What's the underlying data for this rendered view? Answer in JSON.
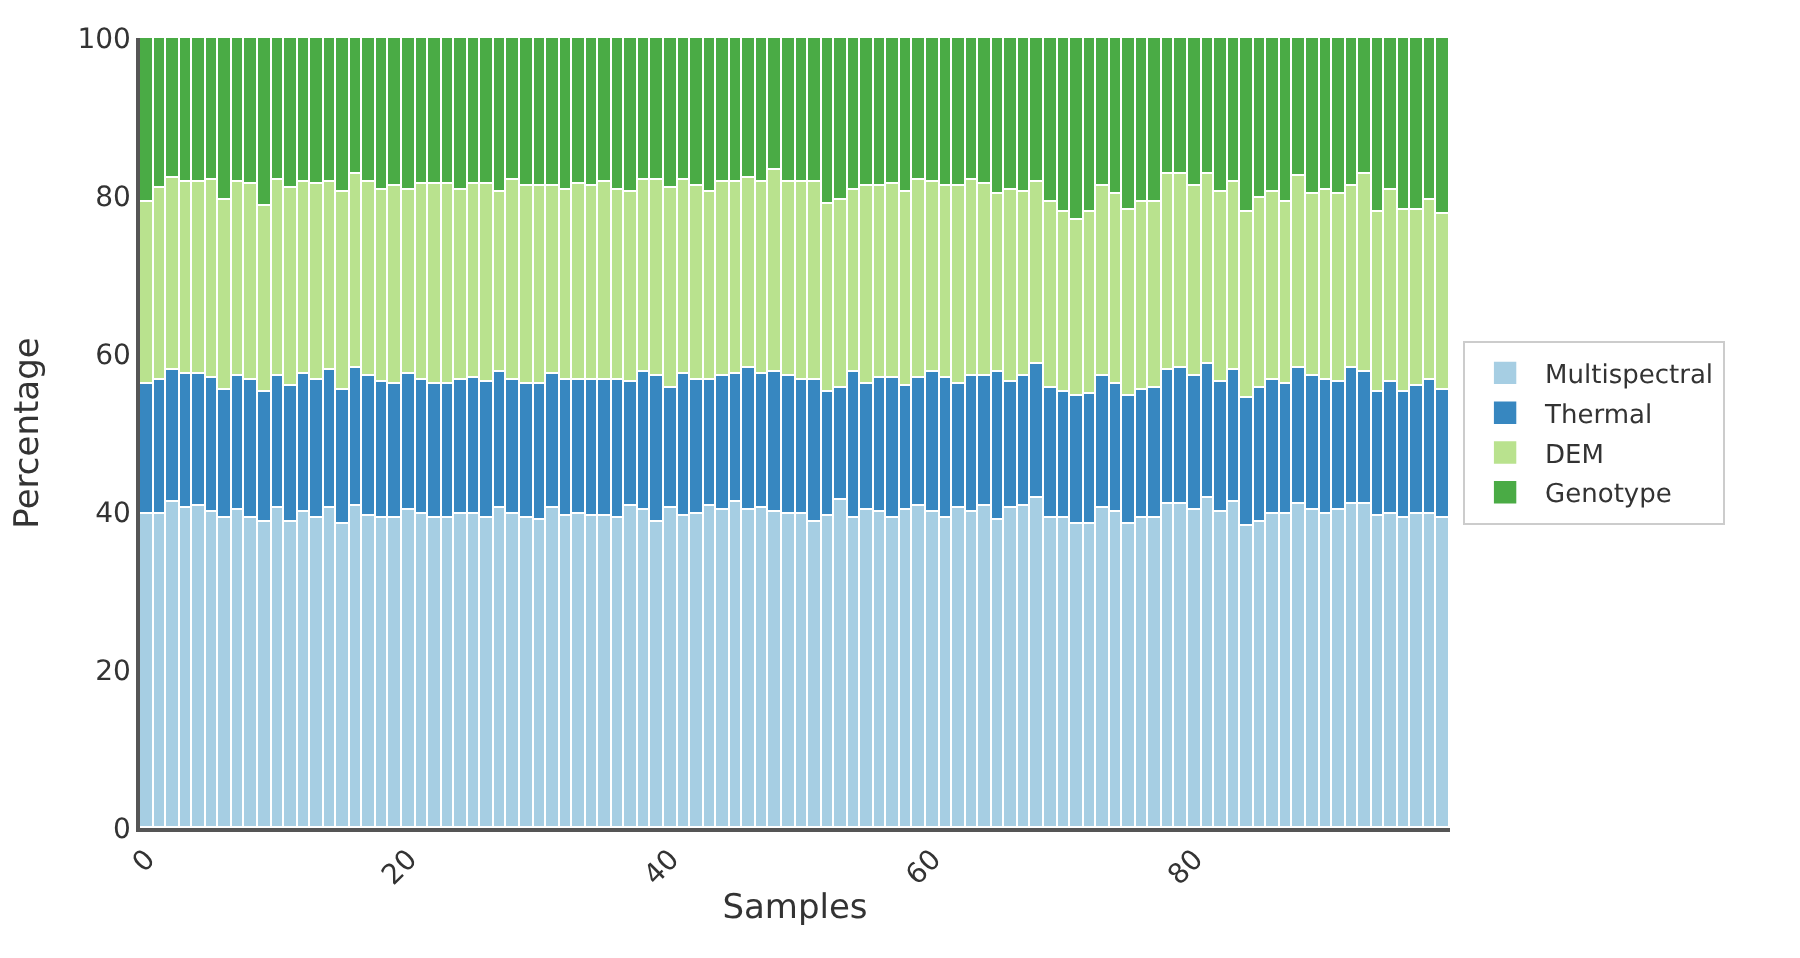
{
  "chart_data": {
    "type": "bar",
    "stacked": true,
    "xlabel": "Samples",
    "ylabel": "Percentage",
    "x": [
      0,
      1,
      2,
      3,
      4,
      5,
      6,
      7,
      8,
      9,
      10,
      11,
      12,
      13,
      14,
      15,
      16,
      17,
      18,
      19,
      20,
      21,
      22,
      23,
      24,
      25,
      26,
      27,
      28,
      29,
      30,
      31,
      32,
      33,
      34,
      35,
      36,
      37,
      38,
      39,
      40,
      41,
      42,
      43,
      44,
      45,
      46,
      47,
      48,
      49,
      50,
      51,
      52,
      53,
      54,
      55,
      56,
      57,
      58,
      59,
      60,
      61,
      62,
      63,
      64,
      65,
      66,
      67,
      68,
      69,
      70,
      71,
      72,
      73,
      74,
      75,
      76,
      77,
      78,
      79,
      80,
      81,
      82,
      83,
      84,
      85,
      86,
      87,
      88,
      89,
      90,
      91,
      92,
      93,
      94,
      95,
      96,
      97,
      98,
      99
    ],
    "xlim": [
      -0.5,
      99.5
    ],
    "xticks": [
      0,
      20,
      40,
      60,
      80
    ],
    "ylim": [
      0,
      100
    ],
    "yticks": [
      0,
      20,
      40,
      60,
      80,
      100
    ],
    "legend": "right",
    "series": [
      {
        "name": "Multispectral",
        "color": "#a6cee3",
        "values": [
          39.8,
          39.8,
          41.2,
          40.5,
          40.8,
          40.0,
          39.2,
          40.2,
          39.2,
          38.7,
          40.6,
          38.8,
          40.0,
          39.2,
          40.4,
          38.5,
          40.8,
          39.5,
          39.3,
          39.2,
          40.2,
          39.7,
          39.3,
          39.2,
          39.8,
          39.8,
          39.3,
          40.4,
          39.7,
          39.2,
          38.9,
          40.4,
          39.5,
          39.7,
          39.5,
          39.5,
          39.2,
          40.8,
          40.3,
          38.8,
          40.5,
          39.5,
          39.8,
          40.8,
          40.2,
          41.3,
          40.3,
          40.5,
          40.0,
          39.7,
          39.7,
          38.8,
          39.6,
          41.4,
          39.3,
          40.3,
          40.0,
          39.3,
          40.3,
          40.8,
          39.9,
          39.2,
          40.5,
          40.1,
          40.8,
          39.1,
          40.5,
          40.8,
          41.8,
          39.3,
          39.2,
          38.5,
          38.5,
          40.5,
          40.0,
          38.5,
          39.2,
          39.3,
          41.0,
          41.0,
          40.2,
          41.7,
          40.0,
          41.2,
          38.3,
          38.7,
          39.7,
          39.7,
          41.0,
          40.2,
          39.7,
          40.2,
          41.0,
          41.0,
          39.5,
          39.8,
          39.2,
          39.7,
          39.8,
          39.2
        ]
      },
      {
        "name": "Thermal",
        "color": "#3787c0",
        "values": [
          16.4,
          16.9,
          16.7,
          17.0,
          16.6,
          17.0,
          16.2,
          17.0,
          17.5,
          16.5,
          16.7,
          17.1,
          17.4,
          17.5,
          17.5,
          17.0,
          17.5,
          17.7,
          17.1,
          17.0,
          17.2,
          17.0,
          17.0,
          17.1,
          16.9,
          17.1,
          17.1,
          17.2,
          16.9,
          17.1,
          17.4,
          17.0,
          17.2,
          17.0,
          17.3,
          17.3,
          17.5,
          15.6,
          17.5,
          18.4,
          15.3,
          17.9,
          16.9,
          15.9,
          17.1,
          16.1,
          18.0,
          16.9,
          17.8,
          17.4,
          17.1,
          18.0,
          15.6,
          14.3,
          18.5,
          15.9,
          17.0,
          17.7,
          15.7,
          16.2,
          17.8,
          17.8,
          15.7,
          17.2,
          16.3,
          18.6,
          15.9,
          16.5,
          16.9,
          16.3,
          16.1,
          16.3,
          16.4,
          16.8,
          16.2,
          16.1,
          16.2,
          16.5,
          17.1,
          17.3,
          17.0,
          17.1,
          16.4,
          16.7,
          16.2,
          16.9,
          17.0,
          16.6,
          17.2,
          16.9,
          17.0,
          16.2,
          17.3,
          16.8,
          15.8,
          16.6,
          16.1,
          16.3,
          16.8,
          16.3
        ]
      },
      {
        "name": "DEM",
        "color": "#b9e28e",
        "values": [
          23.0,
          24.3,
          24.5,
          24.3,
          24.3,
          25.0,
          24.1,
          24.5,
          24.7,
          23.6,
          24.7,
          25.1,
          24.3,
          24.9,
          23.8,
          24.9,
          24.6,
          24.5,
          24.4,
          25.1,
          23.4,
          24.7,
          25.1,
          25.1,
          24.1,
          24.5,
          25.0,
          22.9,
          25.5,
          25.0,
          25.0,
          23.9,
          24.0,
          24.7,
          24.4,
          24.9,
          24.1,
          24.2,
          24.2,
          24.8,
          25.2,
          24.6,
          24.6,
          23.7,
          24.4,
          24.3,
          24.0,
          24.3,
          25.5,
          24.6,
          24.9,
          24.9,
          23.9,
          23.9,
          22.9,
          25.1,
          24.2,
          24.4,
          24.5,
          25.0,
          24.0,
          24.3,
          25.1,
          24.8,
          24.5,
          22.5,
          24.3,
          23.2,
          23.0,
          23.6,
          22.6,
          22.2,
          23.2,
          23.9,
          24.0,
          23.7,
          23.8,
          23.5,
          24.6,
          24.6,
          24.1,
          23.9,
          24.0,
          23.9,
          23.6,
          24.2,
          23.9,
          22.9,
          24.3,
          23.2,
          24.1,
          23.8,
          23.0,
          24.9,
          22.8,
          24.4,
          23.0,
          22.3,
          22.9,
          22.3
        ]
      },
      {
        "name": "Genotype",
        "color": "#4aab45",
        "values": [
          20.8,
          19.0,
          17.6,
          18.2,
          18.3,
          18.0,
          20.5,
          18.3,
          18.6,
          21.2,
          18.0,
          19.0,
          18.3,
          18.4,
          18.3,
          19.6,
          17.1,
          18.3,
          19.2,
          18.7,
          19.2,
          18.6,
          18.6,
          18.6,
          19.2,
          18.6,
          18.6,
          19.5,
          17.9,
          18.7,
          18.7,
          18.7,
          19.3,
          18.6,
          18.8,
          18.3,
          19.2,
          19.4,
          18.0,
          18.0,
          19.0,
          18.0,
          18.7,
          19.6,
          18.3,
          18.3,
          17.7,
          18.3,
          16.7,
          18.3,
          18.3,
          18.3,
          20.9,
          20.4,
          19.3,
          18.7,
          18.8,
          18.6,
          19.5,
          18.0,
          18.3,
          18.7,
          18.7,
          17.9,
          18.4,
          19.8,
          19.3,
          19.5,
          18.3,
          20.8,
          22.1,
          23.0,
          21.9,
          18.8,
          19.8,
          21.7,
          20.8,
          20.7,
          17.3,
          17.1,
          18.7,
          17.3,
          19.6,
          18.2,
          21.9,
          20.2,
          19.4,
          20.8,
          17.5,
          19.7,
          19.2,
          19.8,
          18.7,
          17.3,
          21.9,
          19.2,
          21.7,
          21.7,
          20.5,
          22.2
        ]
      }
    ]
  }
}
